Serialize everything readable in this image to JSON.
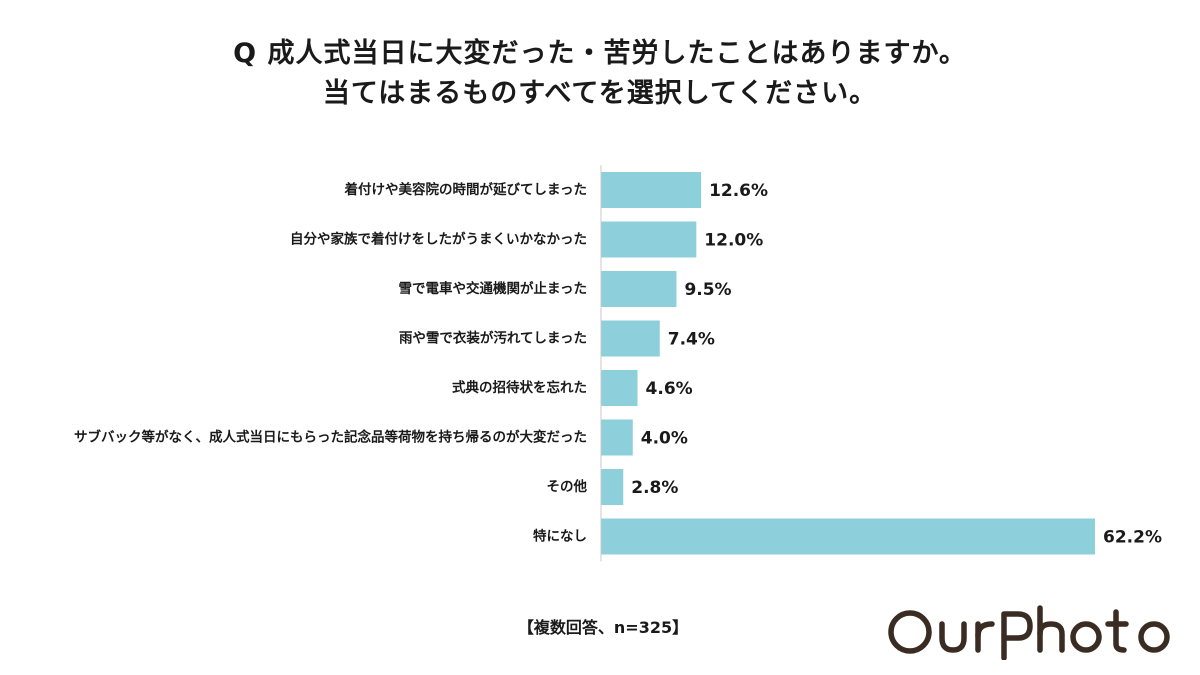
{
  "title": {
    "line1": "Q 成人式当日に大変だった・苦労したことはありますか。",
    "line2": "当てはまるものすべてを選択してください。"
  },
  "note": "【複数回答、n=325】",
  "logo_text": "OurPhoto",
  "colors": {
    "bar": "#8ecfdc",
    "axis": "#c8c8c8",
    "text": "#1a1a1a",
    "logo": "#3a2c22"
  },
  "chart_data": {
    "type": "bar",
    "orientation": "horizontal",
    "categories": [
      "着付けや美容院の時間が延びてしまった",
      "自分や家族で着付けをしたがうまくいかなかった",
      "雪で電車や交通機関が止まった",
      "雨や雪で衣装が汚れてしまった",
      "式典の招待状を忘れた",
      "サブバック等がなく、成人式当日にもらった記念品等荷物を持ち帰るのが大変だった",
      "その他",
      "特になし"
    ],
    "values": [
      12.6,
      12.0,
      9.5,
      7.4,
      4.6,
      4.0,
      2.8,
      62.2
    ],
    "value_labels": [
      "12.6%",
      "12.0%",
      "9.5%",
      "7.4%",
      "4.6%",
      "4.0%",
      "2.8%",
      "62.2%"
    ],
    "unit": "%",
    "xlim": [
      0,
      62.2
    ],
    "grid": false,
    "legend": "none"
  }
}
